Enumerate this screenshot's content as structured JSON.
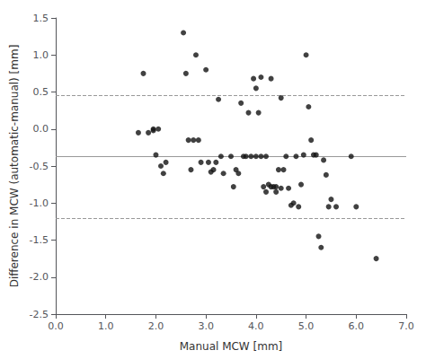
{
  "chart_data": {
    "type": "scatter",
    "xlabel": "Manual MCW [mm]",
    "ylabel": "Difference in MCW (automatic-manual) [mm]",
    "x": [
      1.65,
      1.75,
      1.85,
      1.95,
      1.95,
      2.0,
      2.05,
      2.1,
      2.15,
      2.2,
      2.55,
      2.6,
      2.65,
      2.7,
      2.75,
      2.8,
      2.85,
      2.9,
      3.0,
      3.05,
      3.1,
      3.15,
      3.2,
      3.25,
      3.3,
      3.35,
      3.5,
      3.55,
      3.6,
      3.65,
      3.7,
      3.75,
      3.8,
      3.85,
      3.9,
      3.95,
      4.0,
      4.0,
      4.05,
      4.1,
      4.1,
      4.15,
      4.2,
      4.2,
      4.25,
      4.3,
      4.3,
      4.35,
      4.4,
      4.4,
      4.45,
      4.5,
      4.5,
      4.55,
      4.6,
      4.65,
      4.7,
      4.75,
      4.8,
      4.85,
      4.9,
      4.95,
      5.0,
      5.05,
      5.1,
      5.15,
      5.2,
      5.25,
      5.3,
      5.35,
      5.4,
      5.45,
      5.5,
      5.6,
      5.9,
      6.0,
      6.4
    ],
    "values": [
      -0.05,
      0.75,
      -0.05,
      0.0,
      -0.02,
      -0.35,
      0.0,
      -0.5,
      -0.6,
      -0.45,
      1.3,
      0.75,
      -0.15,
      -0.55,
      -0.15,
      1.0,
      -0.15,
      -0.45,
      0.8,
      -0.45,
      -0.58,
      -0.55,
      -0.45,
      0.4,
      -0.37,
      -0.6,
      -0.37,
      -0.78,
      -0.55,
      -0.6,
      0.35,
      -0.37,
      -0.37,
      0.22,
      -0.37,
      0.68,
      0.55,
      -0.37,
      0.22,
      0.7,
      -0.37,
      -0.78,
      -0.37,
      -0.85,
      -0.75,
      0.68,
      -0.78,
      -0.78,
      -0.85,
      -0.78,
      -0.55,
      0.42,
      -0.8,
      -0.55,
      -0.37,
      -0.8,
      -1.03,
      -1.0,
      -0.37,
      -1.05,
      -0.75,
      -0.35,
      1.0,
      0.3,
      -0.15,
      -0.35,
      -0.35,
      -1.45,
      -1.6,
      -0.42,
      -0.62,
      -1.05,
      -0.95,
      -1.05,
      -0.37,
      -1.05,
      -1.75
    ],
    "color": "#111111",
    "marker": "circle",
    "mean_line": {
      "value": -0.37,
      "color": "#999999",
      "line_style": "solid"
    },
    "upper_loa": {
      "value": 0.45,
      "color": "#999999",
      "line_style": "dashed"
    },
    "lower_loa": {
      "value": -1.2,
      "color": "#999999",
      "line_style": "dashed"
    },
    "xlim": [
      0.0,
      7.0
    ],
    "ylim": [
      -2.5,
      1.5
    ],
    "xticks": [
      {
        "value": 0,
        "label": "0.0"
      },
      {
        "value": 1,
        "label": "1.0"
      },
      {
        "value": 2,
        "label": "2.0"
      },
      {
        "value": 3,
        "label": "3.0"
      },
      {
        "value": 4,
        "label": "4.0"
      },
      {
        "value": 5,
        "label": "5.0"
      },
      {
        "value": 6,
        "label": "6.0"
      },
      {
        "value": 7,
        "label": "7.0"
      }
    ],
    "yticks": [
      -2.5,
      {
        "value": -2,
        "label": "-2.0"
      },
      -1.5,
      {
        "value": -1,
        "label": "-1.0"
      },
      -0.5,
      {
        "value": 0,
        "label": "0.0"
      },
      0.5,
      {
        "value": 1,
        "label": "1.0"
      },
      1.5
    ],
    "grid": false
  }
}
